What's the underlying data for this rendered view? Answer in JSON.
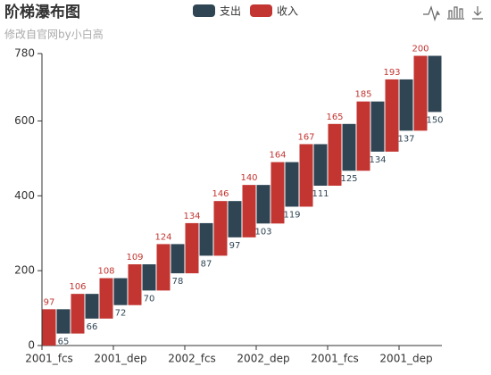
{
  "chart_data": {
    "type": "waterfall",
    "title": "阶梯瀑布图",
    "subtitle": "修改自官网by小白高",
    "categories": [
      "2001_fcs",
      null,
      null,
      null,
      null,
      "2001_dep",
      null,
      null,
      null,
      null,
      "2002_fcs",
      null,
      null,
      null,
      null,
      "2002_dep",
      null,
      null,
      null,
      null,
      "2001_fcs",
      null,
      null,
      null,
      null,
      "2001_dep",
      null,
      null
    ],
    "series": [
      {
        "name": "支出",
        "color": "#2f4554",
        "values": [
          null,
          65,
          null,
          66,
          null,
          72,
          null,
          70,
          null,
          78,
          null,
          87,
          null,
          97,
          null,
          103,
          null,
          119,
          null,
          111,
          null,
          125,
          null,
          134,
          null,
          137,
          null,
          150
        ]
      },
      {
        "name": "收入",
        "color": "#c23531",
        "values": [
          97,
          null,
          106,
          null,
          108,
          null,
          109,
          null,
          124,
          null,
          134,
          null,
          146,
          null,
          140,
          null,
          164,
          null,
          167,
          null,
          165,
          null,
          185,
          null,
          193,
          null,
          200,
          null
        ]
      }
    ],
    "ylim": [
      0,
      780
    ],
    "yticks": [
      0,
      200,
      400,
      600,
      780
    ]
  }
}
